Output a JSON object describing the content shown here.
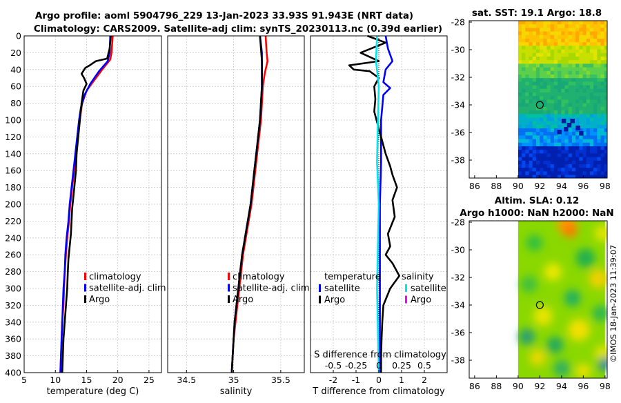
{
  "header": {
    "title_line1": "Argo profile: aoml 5904796_229 13-Jan-2023 33.93S 91.943E (NRT data)",
    "title_line2": "Climatology: CARS2009. Satellite-adj clim: synTS_20230113.nc (0.39d earlier)"
  },
  "watermark": "©IMOS 18-Jan-2023 11:39:07",
  "colors": {
    "climatology": "#ff0000",
    "satellite": "#0000ff",
    "argo": "#000000",
    "sal_satellite": "#00e5ee",
    "sal_argo": "#ff00ff"
  },
  "chart_data": [
    {
      "id": "temperature-profile",
      "type": "line",
      "xlabel": "temperature (deg C)",
      "ylabel": "",
      "xlim": [
        5,
        27
      ],
      "ylim": [
        400,
        0
      ],
      "xticks": [
        5,
        10,
        15,
        20,
        25
      ],
      "yticks": [
        0,
        20,
        40,
        60,
        80,
        100,
        120,
        140,
        160,
        180,
        200,
        220,
        240,
        260,
        280,
        300,
        320,
        340,
        360,
        380,
        400
      ],
      "legend": {
        "position": "lower-right",
        "entries": [
          "climatology",
          "satellite-adj. clim",
          "Argo"
        ]
      },
      "series": [
        {
          "name": "climatology",
          "color": "#ff0000",
          "points": [
            [
              19.2,
              0
            ],
            [
              19.0,
              20
            ],
            [
              18.8,
              28
            ],
            [
              17.5,
              40
            ],
            [
              16.0,
              55
            ],
            [
              15.0,
              65
            ],
            [
              14.3,
              80
            ],
            [
              13.9,
              100
            ],
            [
              13.6,
              120
            ],
            [
              13.3,
              140
            ],
            [
              13.0,
              160
            ],
            [
              12.7,
              180
            ],
            [
              12.4,
              200
            ],
            [
              12.2,
              220
            ],
            [
              11.9,
              240
            ],
            [
              11.7,
              260
            ],
            [
              11.5,
              280
            ],
            [
              11.4,
              300
            ],
            [
              11.3,
              320
            ],
            [
              11.1,
              340
            ],
            [
              11.0,
              360
            ],
            [
              10.9,
              380
            ],
            [
              10.8,
              400
            ]
          ]
        },
        {
          "name": "satellite-adj. clim",
          "color": "#0000ff",
          "points": [
            [
              18.8,
              0
            ],
            [
              18.7,
              20
            ],
            [
              18.4,
              30
            ],
            [
              17.0,
              42
            ],
            [
              15.6,
              57
            ],
            [
              14.7,
              70
            ],
            [
              14.1,
              85
            ],
            [
              13.8,
              100
            ],
            [
              13.5,
              120
            ],
            [
              13.2,
              140
            ],
            [
              12.9,
              160
            ],
            [
              12.6,
              180
            ],
            [
              12.3,
              200
            ],
            [
              12.1,
              220
            ],
            [
              11.8,
              240
            ],
            [
              11.6,
              260
            ],
            [
              11.5,
              280
            ],
            [
              11.3,
              300
            ],
            [
              11.2,
              320
            ],
            [
              11.1,
              340
            ],
            [
              11.0,
              360
            ],
            [
              10.9,
              380
            ],
            [
              10.8,
              400
            ]
          ]
        },
        {
          "name": "Argo",
          "color": "#000000",
          "points": [
            [
              18.9,
              0
            ],
            [
              18.7,
              15
            ],
            [
              18.3,
              27
            ],
            [
              16.5,
              30
            ],
            [
              15.5,
              35
            ],
            [
              14.8,
              38
            ],
            [
              14.2,
              45
            ],
            [
              14.6,
              50
            ],
            [
              15.0,
              57
            ],
            [
              14.5,
              65
            ],
            [
              14.2,
              80
            ],
            [
              14.0,
              95
            ],
            [
              13.8,
              110
            ],
            [
              13.6,
              125
            ],
            [
              13.4,
              140
            ],
            [
              13.3,
              160
            ],
            [
              13.1,
              175
            ],
            [
              12.9,
              190
            ],
            [
              12.7,
              205
            ],
            [
              12.6,
              220
            ],
            [
              12.5,
              235
            ],
            [
              12.3,
              250
            ],
            [
              12.1,
              265
            ],
            [
              12.0,
              280
            ],
            [
              11.9,
              300
            ],
            [
              11.7,
              320
            ],
            [
              11.5,
              340
            ],
            [
              11.3,
              360
            ],
            [
              11.2,
              380
            ],
            [
              11.1,
              400
            ]
          ]
        }
      ]
    },
    {
      "id": "salinity-profile",
      "type": "line",
      "xlabel": "salinity",
      "ylabel": "",
      "xlim": [
        34.3,
        35.75
      ],
      "ylim": [
        400,
        0
      ],
      "xticks": [
        34.5,
        35,
        35.5
      ],
      "xticklabels": [
        "34.5",
        "35",
        "35.5"
      ],
      "legend": {
        "position": "lower-right",
        "entries": [
          "climatology",
          "satellite-adj. clim",
          "Argo"
        ]
      },
      "series": [
        {
          "name": "climatology",
          "color": "#ff0000",
          "points": [
            [
              35.34,
              0
            ],
            [
              35.35,
              20
            ],
            [
              35.36,
              30
            ],
            [
              35.33,
              45
            ],
            [
              35.31,
              60
            ],
            [
              35.3,
              80
            ],
            [
              35.29,
              100
            ],
            [
              35.27,
              120
            ],
            [
              35.25,
              140
            ],
            [
              35.23,
              160
            ],
            [
              35.21,
              180
            ],
            [
              35.19,
              200
            ],
            [
              35.16,
              220
            ],
            [
              35.13,
              240
            ],
            [
              35.1,
              260
            ],
            [
              35.08,
              280
            ],
            [
              35.06,
              300
            ],
            [
              35.04,
              320
            ],
            [
              35.02,
              340
            ],
            [
              35.0,
              360
            ],
            [
              34.99,
              380
            ],
            [
              34.98,
              400
            ]
          ]
        },
        {
          "name": "satellite-adj. clim",
          "color": "#0000ff",
          "points": [
            [
              35.28,
              0
            ],
            [
              35.3,
              20
            ],
            [
              35.3,
              40
            ],
            [
              35.3,
              60
            ],
            [
              35.29,
              80
            ],
            [
              35.28,
              100
            ],
            [
              35.26,
              120
            ],
            [
              35.24,
              140
            ],
            [
              35.22,
              160
            ],
            [
              35.2,
              180
            ],
            [
              35.18,
              200
            ],
            [
              35.15,
              220
            ],
            [
              35.12,
              240
            ],
            [
              35.09,
              260
            ],
            [
              35.07,
              280
            ],
            [
              35.05,
              300
            ],
            [
              35.03,
              320
            ],
            [
              35.01,
              340
            ],
            [
              35.0,
              360
            ],
            [
              34.99,
              380
            ],
            [
              34.98,
              400
            ]
          ]
        },
        {
          "name": "Argo",
          "color": "#000000",
          "points": [
            [
              35.28,
              0
            ],
            [
              35.3,
              30
            ],
            [
              35.3,
              60
            ],
            [
              35.29,
              80
            ],
            [
              35.28,
              100
            ],
            [
              35.26,
              120
            ],
            [
              35.24,
              140
            ],
            [
              35.22,
              160
            ],
            [
              35.2,
              180
            ],
            [
              35.18,
              200
            ],
            [
              35.15,
              220
            ],
            [
              35.12,
              240
            ],
            [
              35.09,
              260
            ],
            [
              35.07,
              280
            ],
            [
              35.05,
              300
            ],
            [
              35.03,
              320
            ],
            [
              35.01,
              340
            ],
            [
              35.0,
              360
            ],
            [
              34.99,
              380
            ],
            [
              34.98,
              400
            ]
          ]
        }
      ]
    },
    {
      "id": "difference-profile",
      "type": "line",
      "xlabel": "T difference from climatology",
      "x2label": "S difference from climatology",
      "xlim": [
        -3,
        3
      ],
      "x2lim": [
        -0.75,
        0.75
      ],
      "ylim": [
        400,
        0
      ],
      "xticks": [
        -2,
        -1,
        0,
        1,
        2
      ],
      "xticklabels": [
        "-2",
        "-1",
        "0",
        "1",
        "2"
      ],
      "x2ticks": [
        -0.5,
        -0.25,
        0,
        0.25,
        0.5
      ],
      "x2ticklabels": [
        "-0.5",
        "-0.25",
        "0",
        "0.25",
        "0.5"
      ],
      "legend": {
        "position": "lower",
        "temperature_title": "temperature",
        "salinity_title": "salinity",
        "temperature_entries": [
          "satellite",
          "Argo"
        ],
        "salinity_entries": [
          "satellite",
          "Argo"
        ]
      },
      "series": [
        {
          "name": "temperature satellite",
          "color": "#0000ff",
          "axis": "T",
          "points": [
            [
              0.3,
              0
            ],
            [
              0.4,
              15
            ],
            [
              0.6,
              30
            ],
            [
              0.3,
              40
            ],
            [
              0.2,
              55
            ],
            [
              0.5,
              62
            ],
            [
              0.2,
              70
            ],
            [
              0.1,
              100
            ],
            [
              0.1,
              150
            ],
            [
              0.05,
              200
            ],
            [
              0.05,
              300
            ],
            [
              0.05,
              400
            ]
          ]
        },
        {
          "name": "temperature Argo",
          "color": "#000000",
          "axis": "T",
          "points": [
            [
              -0.5,
              0
            ],
            [
              0.3,
              8
            ],
            [
              -0.8,
              20
            ],
            [
              0.0,
              30
            ],
            [
              -1.3,
              35
            ],
            [
              -1.1,
              40
            ],
            [
              -0.4,
              42
            ],
            [
              0.0,
              50
            ],
            [
              -0.2,
              60
            ],
            [
              -0.15,
              75
            ],
            [
              -0.2,
              90
            ],
            [
              0.0,
              110
            ],
            [
              0.2,
              130
            ],
            [
              0.3,
              140
            ],
            [
              0.5,
              155
            ],
            [
              0.6,
              165
            ],
            [
              0.8,
              180
            ],
            [
              0.6,
              195
            ],
            [
              0.7,
              215
            ],
            [
              0.4,
              235
            ],
            [
              0.5,
              250
            ],
            [
              0.3,
              260
            ],
            [
              0.6,
              270
            ],
            [
              0.9,
              285
            ],
            [
              0.5,
              300
            ],
            [
              0.2,
              320
            ],
            [
              0.15,
              340
            ],
            [
              0.12,
              360
            ],
            [
              0.1,
              380
            ],
            [
              0.1,
              400
            ]
          ]
        },
        {
          "name": "salinity satellite",
          "color": "#00e5ee",
          "axis": "S",
          "points": [
            [
              -0.02,
              0
            ],
            [
              -0.03,
              30
            ],
            [
              0.0,
              60
            ],
            [
              -0.01,
              100
            ],
            [
              -0.02,
              150
            ],
            [
              0.0,
              200
            ],
            [
              -0.01,
              250
            ],
            [
              -0.02,
              300
            ],
            [
              -0.01,
              350
            ],
            [
              0.0,
              400
            ]
          ]
        },
        {
          "name": "salinity Argo",
          "color": "#ff00ff",
          "axis": "S",
          "points": []
        }
      ]
    },
    {
      "id": "sst-map",
      "type": "heatmap",
      "title": "sat. SST: 19.1 Argo: 18.8",
      "xlim": [
        85.5,
        98.2
      ],
      "ylim": [
        -39.3,
        -27.9
      ],
      "xticks": [
        86,
        88,
        90,
        92,
        94,
        96,
        98
      ],
      "yticks": [
        -28,
        -30,
        -32,
        -34,
        -36,
        -38
      ],
      "data_extent": [
        90,
        98,
        -39.3,
        -27.9
      ],
      "marker": [
        92,
        -34
      ]
    },
    {
      "id": "sla-map",
      "type": "heatmap",
      "title_line1": "Altim. SLA: 0.12",
      "title_line2": "Argo h1000: NaN h2000: NaN",
      "xlim": [
        85.5,
        98.2
      ],
      "ylim": [
        -39.3,
        -27.9
      ],
      "xticks": [
        86,
        88,
        90,
        92,
        94,
        96,
        98
      ],
      "yticks": [
        -28,
        -30,
        -32,
        -34,
        -36,
        -38
      ],
      "data_extent": [
        90,
        98,
        -39.3,
        -27.9
      ],
      "marker": [
        92,
        -34
      ]
    }
  ]
}
